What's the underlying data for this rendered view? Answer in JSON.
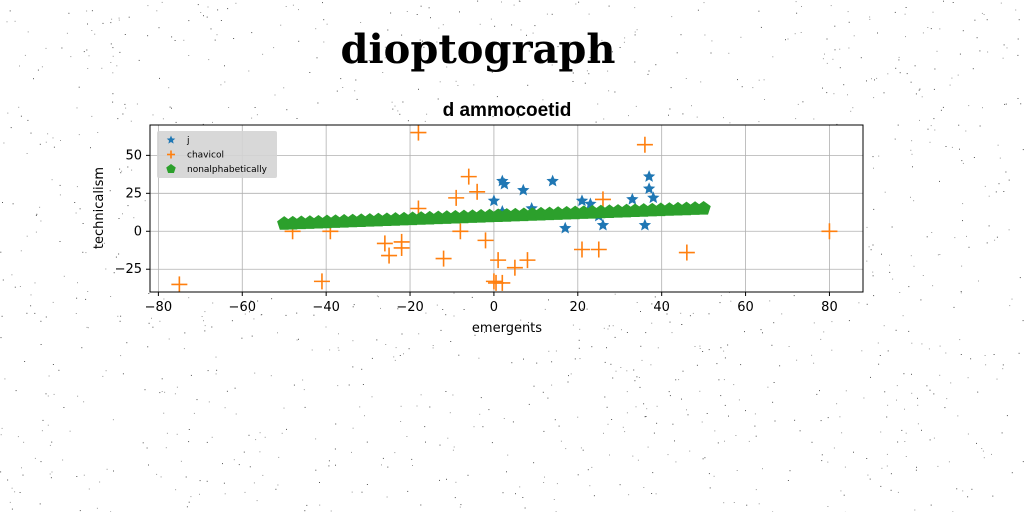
{
  "page": {
    "title": "dioptograph"
  },
  "chart_data": {
    "type": "scatter",
    "title": "d ammocoetid",
    "xlabel": "emergents",
    "ylabel": "technicalism",
    "xlim": [
      -82,
      88
    ],
    "ylim": [
      -40,
      70
    ],
    "xticks": [
      -80,
      -60,
      -40,
      -20,
      0,
      20,
      40,
      60,
      80
    ],
    "yticks": [
      -25,
      0,
      25,
      50
    ],
    "grid": true,
    "legend_position": "top-left",
    "series": [
      {
        "name": "j",
        "marker": "star",
        "color": "#1f77b4",
        "points": [
          [
            0,
            20
          ],
          [
            2,
            33
          ],
          [
            2.5,
            31
          ],
          [
            2,
            13
          ],
          [
            7,
            27
          ],
          [
            9,
            15
          ],
          [
            14,
            33
          ],
          [
            17,
            2
          ],
          [
            21,
            20
          ],
          [
            23,
            18
          ],
          [
            25,
            10
          ],
          [
            26,
            4
          ],
          [
            33,
            21
          ],
          [
            36,
            4
          ],
          [
            37,
            36
          ],
          [
            37,
            28
          ],
          [
            38,
            22
          ]
        ]
      },
      {
        "name": "chavicol",
        "marker": "plus",
        "color": "#ff7f0e",
        "points": [
          [
            -75,
            -35
          ],
          [
            -48,
            0
          ],
          [
            -41,
            -33
          ],
          [
            -39,
            0
          ],
          [
            -26,
            -8
          ],
          [
            -25,
            -16
          ],
          [
            -22,
            -11
          ],
          [
            -22,
            -7
          ],
          [
            -18,
            65
          ],
          [
            -18,
            15
          ],
          [
            -12,
            -18
          ],
          [
            -9,
            22
          ],
          [
            -8,
            0
          ],
          [
            -6,
            36
          ],
          [
            -4,
            26
          ],
          [
            -2,
            -6
          ],
          [
            0,
            -33
          ],
          [
            0.5,
            -34
          ],
          [
            1,
            -19
          ],
          [
            2,
            -34
          ],
          [
            5,
            -24
          ],
          [
            8,
            -19
          ],
          [
            21,
            -12
          ],
          [
            25,
            -12
          ],
          [
            26,
            21
          ],
          [
            36,
            57
          ],
          [
            46,
            -14
          ],
          [
            80,
            0
          ]
        ]
      },
      {
        "name": "nonalphabetically",
        "marker": "pentagon",
        "color": "#2ca02c",
        "line": {
          "from": [
            -50,
            5
          ],
          "to": [
            50,
            15
          ],
          "count": 50
        }
      }
    ]
  },
  "colors": {
    "grid": "#b0b0b0",
    "legend_bg": "#d4d4d4"
  }
}
